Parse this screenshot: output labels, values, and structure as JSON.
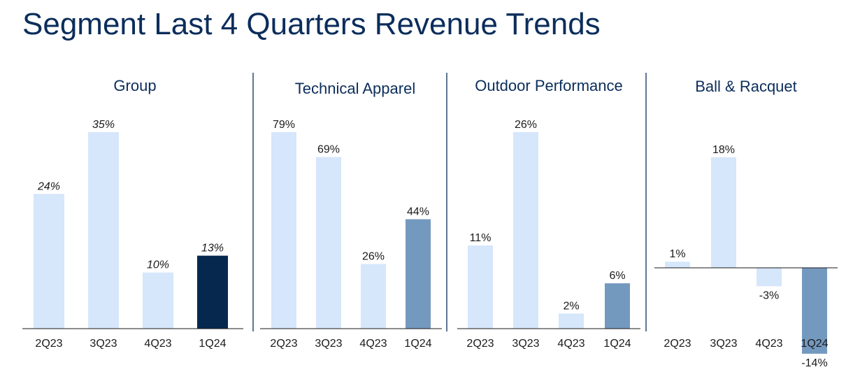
{
  "title": "Segment Last 4 Quarters Revenue Trends",
  "colors": {
    "light": "#d6e6fb",
    "accent": "#7499bf",
    "group_accent": "#06284f",
    "title": "#0b2d5b"
  },
  "chart_data": [
    {
      "type": "bar",
      "title": "Group",
      "categories": [
        "2Q23",
        "3Q23",
        "4Q23",
        "1Q24"
      ],
      "values": [
        24,
        35,
        10,
        13
      ],
      "labels": [
        "24%",
        "35%",
        "10%",
        "13%"
      ],
      "unit": "%",
      "ylim": [
        0,
        35
      ],
      "highlight_color": "#06284f",
      "italic_labels": true
    },
    {
      "type": "bar",
      "title": "Technical Apparel",
      "categories": [
        "2Q23",
        "3Q23",
        "4Q23",
        "1Q24"
      ],
      "values": [
        79,
        69,
        26,
        44
      ],
      "labels": [
        "79%",
        "69%",
        "26%",
        "44%"
      ],
      "unit": "%",
      "ylim": [
        0,
        79
      ],
      "highlight_color": "#7499bf",
      "italic_labels": false
    },
    {
      "type": "bar",
      "title": "Outdoor Performance",
      "categories": [
        "2Q23",
        "3Q23",
        "4Q23",
        "1Q24"
      ],
      "values": [
        11,
        26,
        2,
        6
      ],
      "labels": [
        "11%",
        "26%",
        "2%",
        "6%"
      ],
      "unit": "%",
      "ylim": [
        0,
        26
      ],
      "highlight_color": "#7499bf",
      "italic_labels": false
    },
    {
      "type": "bar",
      "title": "Ball & Racquet",
      "categories": [
        "2Q23",
        "3Q23",
        "4Q23",
        "1Q24"
      ],
      "values": [
        1,
        18,
        -3,
        -14
      ],
      "labels": [
        "1%",
        "18%",
        "-3%",
        "-14%"
      ],
      "unit": "%",
      "ylim": [
        -14,
        18
      ],
      "highlight_color": "#7499bf",
      "italic_labels": false
    }
  ]
}
